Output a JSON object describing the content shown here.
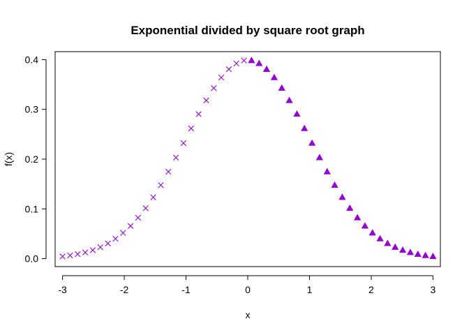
{
  "chart_data": {
    "type": "scatter",
    "title": "Exponential divided by square root graph",
    "xlabel": "x",
    "ylabel": "f(x)",
    "xlim": [
      -3.12,
      3.12
    ],
    "ylim": [
      -0.016,
      0.416
    ],
    "x_ticks": [
      -3,
      -2,
      -1,
      0,
      1,
      2,
      3
    ],
    "y_ticks": [
      0.0,
      0.1,
      0.2,
      0.3,
      0.4
    ],
    "x_tick_labels": [
      "-3",
      "-2",
      "-1",
      "0",
      "1",
      "2",
      "3"
    ],
    "y_tick_labels": [
      "0.0",
      "0.1",
      "0.2",
      "0.3",
      "0.4"
    ],
    "grid": false,
    "color": "#9400D3",
    "series": [
      {
        "marker": "x",
        "x": [
          -3.0,
          -2.878,
          -2.755,
          -2.633,
          -2.51,
          -2.388,
          -2.265,
          -2.143,
          -2.02,
          -1.898,
          -1.776,
          -1.653,
          -1.531,
          -1.408,
          -1.286,
          -1.163,
          -1.041,
          -0.918,
          -0.796,
          -0.673,
          -0.551,
          -0.429,
          -0.306,
          -0.184,
          -0.061
        ],
        "y": [
          0.0044,
          0.0064,
          0.0089,
          0.0125,
          0.0171,
          0.023,
          0.0306,
          0.04,
          0.0518,
          0.0657,
          0.0823,
          0.1014,
          0.1233,
          0.1477,
          0.1747,
          0.2031,
          0.2322,
          0.2617,
          0.2905,
          0.318,
          0.3427,
          0.364,
          0.3806,
          0.3922,
          0.3982
        ]
      },
      {
        "marker": "triangle",
        "x": [
          0.061,
          0.184,
          0.306,
          0.429,
          0.551,
          0.673,
          0.796,
          0.918,
          1.041,
          1.163,
          1.286,
          1.408,
          1.531,
          1.653,
          1.776,
          1.898,
          2.02,
          2.143,
          2.265,
          2.388,
          2.51,
          2.633,
          2.755,
          2.878,
          3.0
        ],
        "y": [
          0.3982,
          0.3922,
          0.3806,
          0.364,
          0.3427,
          0.318,
          0.2905,
          0.2617,
          0.2322,
          0.2031,
          0.1747,
          0.1477,
          0.1233,
          0.1014,
          0.0823,
          0.0657,
          0.0518,
          0.04,
          0.0306,
          0.023,
          0.0171,
          0.0125,
          0.0089,
          0.0064,
          0.0044
        ]
      }
    ]
  }
}
